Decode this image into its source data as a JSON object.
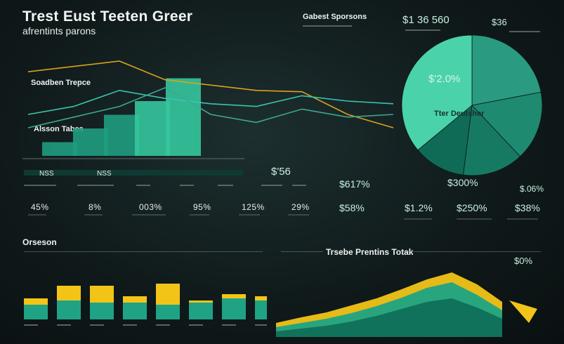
{
  "header": {
    "title": "Trest Eust Teeten Greer",
    "subtitle": "afrentints parons"
  },
  "top_left": {
    "label_a": "Soadben Trepce",
    "label_b": "Alsson Tabes",
    "axis_left": "NSS",
    "axis_mid": "NSS"
  },
  "top_middle": {
    "label": "Gabest Sporsons"
  },
  "top_right": {
    "value": "$1 36 560",
    "badge": "$36"
  },
  "pie": {
    "value": "$'2.0%",
    "label": "Tter Deutsher"
  },
  "big_value": "$'56",
  "percents": [
    "45%",
    "8%",
    "003%",
    "95%",
    "125%",
    "29%"
  ],
  "values_mid": [
    "$617%",
    "$58%"
  ],
  "values_right_top": [
    "$300%",
    "$.06%"
  ],
  "values_right": [
    "$1.2%",
    "$250%",
    "$38%"
  ],
  "section_left": {
    "title": "Orseson"
  },
  "section_right": {
    "title": "Trsebe Prentins Totak"
  },
  "corner_value": "$0%",
  "colors": {
    "teal": "#1fa384",
    "teal_light": "#3fcfa5",
    "yellow": "#f2c418",
    "bg": "#101a1b"
  },
  "chart_data": [
    {
      "type": "line",
      "series": [
        {
          "color": "#d9a21b",
          "values": [
            62,
            66,
            70,
            56,
            52,
            48,
            47,
            30,
            20
          ]
        },
        {
          "color": "#39c5b0",
          "values": [
            30,
            36,
            48,
            42,
            38,
            36,
            44,
            40,
            38
          ]
        },
        {
          "color": "#3ea88e",
          "values": [
            20,
            28,
            36,
            50,
            30,
            24,
            34,
            28,
            30
          ]
        }
      ]
    },
    {
      "type": "bar",
      "values": [
        15,
        30,
        45,
        60,
        85
      ]
    },
    {
      "type": "pie",
      "values": [
        22,
        16,
        14,
        12,
        36
      ]
    },
    {
      "type": "bar",
      "categories": [
        "1",
        "2",
        "3",
        "4",
        "5",
        "6",
        "7",
        "8"
      ],
      "series": [
        {
          "color": "#f2c418",
          "values": [
            50,
            80,
            80,
            55,
            85,
            45,
            60,
            55
          ]
        },
        {
          "color": "#1fa384",
          "values": [
            35,
            45,
            40,
            40,
            35,
            40,
            50,
            45
          ]
        }
      ]
    },
    {
      "type": "area",
      "series": [
        {
          "color": "#f2c418",
          "values": [
            20,
            28,
            35,
            45,
            55,
            68,
            82,
            92,
            75,
            50
          ]
        },
        {
          "color": "#1fa384",
          "values": [
            14,
            20,
            26,
            34,
            44,
            56,
            70,
            78,
            60,
            38
          ]
        },
        {
          "color": "#0f6f5a",
          "values": [
            8,
            12,
            16,
            22,
            30,
            40,
            50,
            55,
            42,
            26
          ]
        }
      ]
    }
  ]
}
